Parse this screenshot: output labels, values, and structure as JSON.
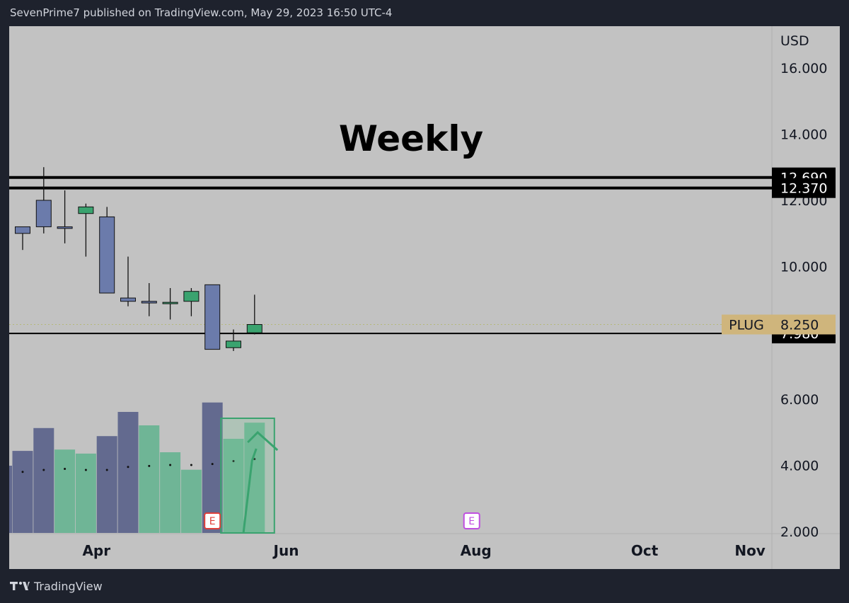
{
  "header": {
    "publisher_line": "SevenPrime7 published on TradingView.com, May 29, 2023 16:50 UTC-4"
  },
  "footer": {
    "brand": "TradingView",
    "logo_icon": "tradingview-logo-icon"
  },
  "colors": {
    "bg": "#1e222d",
    "pane": "#c2c2c2",
    "up_body": "#3aa36f",
    "down_body": "#6b7bab",
    "vol_up": "#6fb596",
    "vol_down": "#636a8f",
    "level_line": "#000000",
    "price_badge": "#cfb57c",
    "earnings_red": "#e0403a",
    "earnings_purple": "#c04fe0",
    "annotation_green": "#3aa36f"
  },
  "chart_data": {
    "type": "candlestick",
    "title": "Weekly",
    "currency": "USD",
    "symbol": "PLUG",
    "last_price": "8.250",
    "ylim": [
      2.0,
      17.0
    ],
    "y_ticks": [
      "2.000",
      "4.000",
      "6.000",
      "10.000",
      "12.000",
      "14.000",
      "16.000"
    ],
    "x_ticks": [
      "Apr",
      "Jun",
      "Aug",
      "Oct",
      "Nov"
    ],
    "x_tick_weeks": [
      3.5,
      12.5,
      21.5,
      29.5,
      34.5
    ],
    "horizontal_levels": [
      {
        "value": 12.69,
        "label": "12.690"
      },
      {
        "value": 12.37,
        "label": "12.370"
      },
      {
        "value": 7.98,
        "label": "7.980"
      }
    ],
    "candles": [
      {
        "o": 11.2,
        "h": 11.2,
        "l": 10.5,
        "c": 11.0
      },
      {
        "o": 12.0,
        "h": 13.0,
        "l": 11.0,
        "c": 11.2
      },
      {
        "o": 11.2,
        "h": 12.3,
        "l": 10.7,
        "c": 11.15
      },
      {
        "o": 11.6,
        "h": 11.9,
        "l": 10.3,
        "c": 11.8
      },
      {
        "o": 11.5,
        "h": 11.8,
        "l": 9.2,
        "c": 9.2
      },
      {
        "o": 9.05,
        "h": 10.3,
        "l": 8.8,
        "c": 8.95
      },
      {
        "o": 8.95,
        "h": 9.5,
        "l": 8.5,
        "c": 8.9
      },
      {
        "o": 8.9,
        "h": 9.35,
        "l": 8.4,
        "c": 8.92
      },
      {
        "o": 8.95,
        "h": 9.35,
        "l": 8.5,
        "c": 9.25
      },
      {
        "o": 9.45,
        "h": 9.45,
        "l": 7.5,
        "c": 7.5
      },
      {
        "o": 7.55,
        "h": 8.1,
        "l": 7.45,
        "c": 7.75
      },
      {
        "o": 8.0,
        "h": 9.15,
        "l": 7.95,
        "c": 8.25
      }
    ],
    "volume": {
      "max": 1.0,
      "bars": [
        {
          "v": 0.61,
          "dir": "down"
        },
        {
          "v": 0.78,
          "dir": "down"
        },
        {
          "v": 0.62,
          "dir": "up"
        },
        {
          "v": 0.59,
          "dir": "up"
        },
        {
          "v": 0.72,
          "dir": "down"
        },
        {
          "v": 0.9,
          "dir": "down"
        },
        {
          "v": 0.8,
          "dir": "up"
        },
        {
          "v": 0.6,
          "dir": "up"
        },
        {
          "v": 0.47,
          "dir": "up"
        },
        {
          "v": 0.97,
          "dir": "down"
        },
        {
          "v": 0.7,
          "dir": "up"
        },
        {
          "v": 0.82,
          "dir": "up"
        }
      ],
      "ma": [
        0.55,
        0.57,
        0.58,
        0.57,
        0.57,
        0.6,
        0.61,
        0.62,
        0.62,
        0.63,
        0.66,
        0.68
      ]
    },
    "earnings_markers": [
      {
        "week": 9,
        "label": "E",
        "color": "red"
      },
      {
        "week": 21.3,
        "label": "E",
        "color": "purple"
      }
    ]
  }
}
